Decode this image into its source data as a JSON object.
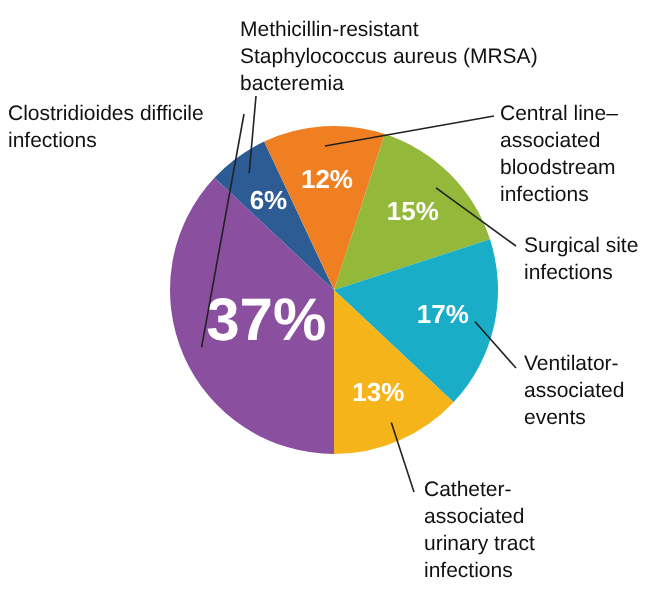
{
  "chart_data": {
    "type": "pie",
    "categories": [
      "Clostridioides difficile\ninfections",
      "Methicillin-resistant\nStaphylococcus aureus (MRSA)\nbacteremia",
      "Central line–\nassociated\nbloodstream\ninfections",
      "Surgical site\ninfections",
      "Ventilator-\nassociated\nevents",
      "Catheter-\nassociated\nurinary tract\ninfections"
    ],
    "values": [
      37,
      6,
      12,
      15,
      17,
      13
    ],
    "value_labels": [
      "37%",
      "6%",
      "12%",
      "15%",
      "17%",
      "13%"
    ],
    "colors": [
      "#8b4fa0",
      "#2d5b94",
      "#f07f22",
      "#93b83a",
      "#19adc8",
      "#f5b419"
    ]
  }
}
